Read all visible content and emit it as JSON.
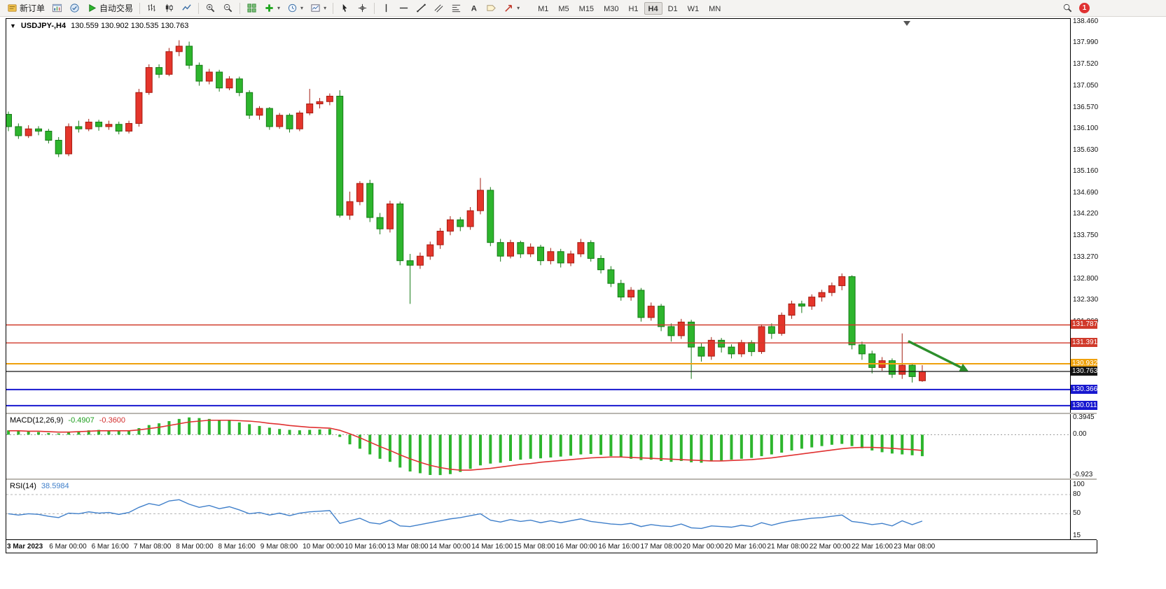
{
  "toolbar": {
    "new_order": "新订单",
    "autotrading": "自动交易",
    "timeframes": [
      "M1",
      "M5",
      "M15",
      "M30",
      "H1",
      "H4",
      "D1",
      "W1",
      "MN"
    ],
    "active_timeframe": "H4",
    "notification_count": "1"
  },
  "chart": {
    "symbol_title": "USDJPY-,H4",
    "ohlc_line": "130.559 130.902 130.535 130.763"
  },
  "chart_data": [
    {
      "type": "candlestick",
      "title": "USDJPY-,H4",
      "current_ohlc": {
        "open": 130.559,
        "high": 130.902,
        "low": 130.535,
        "close": 130.763
      },
      "up_color": "#e5352b",
      "up_border": "#a31d12",
      "down_color": "#2db52d",
      "down_border": "#167a16",
      "ylim": [
        129.84,
        138.52
      ],
      "y_ticks": [
        "138.460",
        "137.990",
        "137.520",
        "137.050",
        "136.570",
        "136.100",
        "135.630",
        "135.160",
        "134.690",
        "134.220",
        "133.750",
        "133.270",
        "132.800",
        "132.330",
        "131.860"
      ],
      "x_labels": [
        "3 Mar 2023",
        "6 Mar 00:00",
        "6 Mar 16:00",
        "7 Mar 08:00",
        "8 Mar 00:00",
        "8 Mar 16:00",
        "9 Mar 08:00",
        "10 Mar 00:00",
        "10 Mar 16:00",
        "13 Mar 08:00",
        "14 Mar 00:00",
        "14 Mar 16:00",
        "15 Mar 08:00",
        "16 Mar 00:00",
        "16 Mar 16:00",
        "17 Mar 08:00",
        "20 Mar 00:00",
        "20 Mar 16:00",
        "21 Mar 08:00",
        "22 Mar 00:00",
        "22 Mar 16:00",
        "23 Mar 08:00"
      ],
      "hlines": [
        {
          "price": 131.787,
          "color": "#d03a2b",
          "width": 1.4,
          "label": "131.787"
        },
        {
          "price": 131.391,
          "color": "#d03a2b",
          "width": 1.4,
          "label": "131.391"
        },
        {
          "price": 130.932,
          "color": "#efa10c",
          "width": 2,
          "label": "130.932"
        },
        {
          "price": 130.763,
          "color": "#141414",
          "width": 1.2,
          "label": "130.763"
        },
        {
          "price": 130.366,
          "color": "#1717cf",
          "width": 2,
          "label": "130.366"
        },
        {
          "price": 130.011,
          "color": "#1717cf",
          "width": 2,
          "label": "130.011"
        }
      ],
      "arrow_annotation": {
        "from_index": 89.6,
        "from_price": 131.43,
        "to_index": 95.6,
        "to_price": 130.77,
        "color": "#2c8f2c"
      },
      "candles": [
        [
          136.42,
          136.48,
          136.05,
          136.15
        ],
        [
          136.15,
          136.22,
          135.88,
          135.95
        ],
        [
          135.95,
          136.18,
          135.9,
          136.1
        ],
        [
          136.1,
          136.16,
          135.96,
          136.05
        ],
        [
          136.05,
          136.1,
          135.78,
          135.85
        ],
        [
          135.85,
          135.92,
          135.48,
          135.55
        ],
        [
          135.55,
          136.22,
          135.5,
          136.15
        ],
        [
          136.15,
          136.28,
          136.02,
          136.1
        ],
        [
          136.1,
          136.32,
          136.05,
          136.25
        ],
        [
          136.25,
          136.3,
          136.06,
          136.15
        ],
        [
          136.15,
          136.28,
          136.08,
          136.2
        ],
        [
          136.2,
          136.26,
          135.98,
          136.05
        ],
        [
          136.05,
          136.28,
          136.0,
          136.22
        ],
        [
          136.22,
          136.98,
          136.15,
          136.9
        ],
        [
          136.9,
          137.52,
          136.85,
          137.45
        ],
        [
          137.45,
          137.52,
          137.22,
          137.3
        ],
        [
          137.3,
          137.88,
          137.26,
          137.8
        ],
        [
          137.8,
          138.05,
          137.7,
          137.92
        ],
        [
          137.92,
          138.02,
          137.42,
          137.5
        ],
        [
          137.5,
          137.56,
          137.05,
          137.15
        ],
        [
          137.15,
          137.42,
          137.08,
          137.35
        ],
        [
          137.35,
          137.4,
          136.92,
          137.0
        ],
        [
          137.0,
          137.26,
          136.95,
          137.2
        ],
        [
          137.2,
          137.25,
          136.82,
          136.9
        ],
        [
          136.9,
          136.95,
          136.32,
          136.4
        ],
        [
          136.4,
          136.6,
          136.3,
          136.55
        ],
        [
          136.55,
          136.58,
          136.08,
          136.15
        ],
        [
          136.15,
          136.45,
          136.1,
          136.4
        ],
        [
          136.4,
          136.44,
          136.02,
          136.1
        ],
        [
          136.1,
          136.5,
          136.05,
          136.45
        ],
        [
          136.45,
          136.98,
          136.4,
          136.65
        ],
        [
          136.65,
          136.78,
          136.55,
          136.7
        ],
        [
          136.7,
          136.88,
          136.62,
          136.82
        ],
        [
          136.82,
          136.95,
          134.15,
          134.2
        ],
        [
          134.2,
          134.72,
          134.1,
          134.5
        ],
        [
          134.5,
          134.95,
          134.42,
          134.9
        ],
        [
          134.9,
          134.98,
          134.05,
          134.15
        ],
        [
          134.15,
          134.25,
          133.78,
          133.9
        ],
        [
          133.9,
          134.52,
          133.82,
          134.45
        ],
        [
          134.45,
          134.5,
          133.1,
          133.2
        ],
        [
          133.2,
          133.35,
          132.25,
          133.1
        ],
        [
          133.1,
          133.38,
          133.02,
          133.3
        ],
        [
          133.3,
          133.62,
          133.22,
          133.55
        ],
        [
          133.55,
          133.92,
          133.46,
          133.85
        ],
        [
          133.85,
          134.18,
          133.76,
          134.1
        ],
        [
          134.1,
          134.16,
          133.85,
          133.95
        ],
        [
          133.95,
          134.38,
          133.88,
          134.3
        ],
        [
          134.3,
          135.02,
          134.22,
          134.75
        ],
        [
          134.75,
          134.82,
          133.52,
          133.6
        ],
        [
          133.6,
          133.68,
          133.18,
          133.3
        ],
        [
          133.3,
          133.66,
          133.25,
          133.6
        ],
        [
          133.6,
          133.64,
          133.26,
          133.35
        ],
        [
          133.35,
          133.58,
          133.28,
          133.5
        ],
        [
          133.5,
          133.55,
          133.1,
          133.2
        ],
        [
          133.2,
          133.48,
          133.12,
          133.4
        ],
        [
          133.4,
          133.46,
          133.05,
          133.15
        ],
        [
          133.15,
          133.42,
          133.08,
          133.35
        ],
        [
          133.35,
          133.68,
          133.28,
          133.6
        ],
        [
          133.6,
          133.65,
          133.18,
          133.25
        ],
        [
          133.25,
          133.32,
          132.92,
          133.0
        ],
        [
          133.0,
          133.08,
          132.62,
          132.7
        ],
        [
          132.7,
          132.78,
          132.32,
          132.4
        ],
        [
          132.4,
          132.62,
          132.32,
          132.55
        ],
        [
          132.55,
          132.6,
          131.86,
          131.95
        ],
        [
          131.95,
          132.28,
          131.88,
          132.2
        ],
        [
          132.2,
          132.25,
          131.65,
          131.75
        ],
        [
          131.75,
          131.82,
          131.42,
          131.55
        ],
        [
          131.55,
          131.92,
          131.48,
          131.85
        ],
        [
          131.85,
          131.9,
          130.6,
          131.3
        ],
        [
          131.3,
          131.38,
          130.98,
          131.1
        ],
        [
          131.1,
          131.52,
          131.02,
          131.45
        ],
        [
          131.45,
          131.5,
          131.18,
          131.3
        ],
        [
          131.3,
          131.36,
          131.05,
          131.15
        ],
        [
          131.15,
          131.46,
          131.08,
          131.4
        ],
        [
          131.4,
          131.45,
          131.1,
          131.2
        ],
        [
          131.2,
          131.8,
          131.15,
          131.75
        ],
        [
          131.75,
          131.82,
          131.48,
          131.6
        ],
        [
          131.6,
          132.06,
          131.55,
          132.0
        ],
        [
          132.0,
          132.32,
          131.92,
          132.25
        ],
        [
          132.25,
          132.32,
          132.05,
          132.2
        ],
        [
          132.2,
          132.46,
          132.12,
          132.4
        ],
        [
          132.4,
          132.56,
          132.3,
          132.5
        ],
        [
          132.5,
          132.72,
          132.42,
          132.65
        ],
        [
          132.65,
          132.92,
          132.55,
          132.85
        ],
        [
          132.85,
          132.88,
          131.25,
          131.35
        ],
        [
          131.35,
          131.42,
          131.02,
          131.15
        ],
        [
          131.15,
          131.22,
          130.72,
          130.85
        ],
        [
          130.85,
          131.08,
          130.78,
          131.0
        ],
        [
          131.0,
          131.05,
          130.62,
          130.7
        ],
        [
          130.7,
          131.6,
          130.6,
          130.9
        ],
        [
          130.9,
          130.95,
          130.52,
          130.65
        ],
        [
          130.559,
          130.902,
          130.535,
          130.763
        ]
      ]
    },
    {
      "type": "macd_histogram",
      "label": "MACD(12,26,9)",
      "values_text": [
        "-0.4907",
        "-0.3600"
      ],
      "histogram_color": "#2db52d",
      "signal_color": "#e03131",
      "ylim": [
        -1.0,
        0.47
      ],
      "y_ticks": [
        "0.3945",
        "0.00",
        "-0.923"
      ],
      "y_tick_values": [
        0.3945,
        0,
        -0.923
      ],
      "histogram": [
        0.1,
        0.08,
        0.07,
        0.06,
        0.04,
        0.03,
        0.06,
        0.08,
        0.1,
        0.11,
        0.1,
        0.09,
        0.1,
        0.15,
        0.22,
        0.26,
        0.31,
        0.36,
        0.3945,
        0.38,
        0.36,
        0.34,
        0.32,
        0.28,
        0.24,
        0.2,
        0.16,
        0.13,
        0.11,
        0.1,
        0.11,
        0.12,
        0.13,
        -0.05,
        -0.22,
        -0.32,
        -0.45,
        -0.55,
        -0.62,
        -0.75,
        -0.84,
        -0.88,
        -0.92,
        -0.923,
        -0.9,
        -0.85,
        -0.78,
        -0.7,
        -0.66,
        -0.64,
        -0.6,
        -0.57,
        -0.55,
        -0.54,
        -0.52,
        -0.5,
        -0.48,
        -0.45,
        -0.44,
        -0.46,
        -0.49,
        -0.52,
        -0.55,
        -0.58,
        -0.57,
        -0.6,
        -0.62,
        -0.6,
        -0.63,
        -0.64,
        -0.61,
        -0.59,
        -0.57,
        -0.55,
        -0.53,
        -0.49,
        -0.45,
        -0.41,
        -0.36,
        -0.32,
        -0.29,
        -0.26,
        -0.23,
        -0.21,
        -0.26,
        -0.31,
        -0.36,
        -0.4,
        -0.43,
        -0.45,
        -0.47,
        -0.4907
      ],
      "signal": [
        0.09,
        0.09,
        0.08,
        0.08,
        0.07,
        0.06,
        0.06,
        0.07,
        0.08,
        0.09,
        0.09,
        0.09,
        0.09,
        0.11,
        0.14,
        0.17,
        0.21,
        0.25,
        0.29,
        0.31,
        0.33,
        0.33,
        0.33,
        0.32,
        0.31,
        0.29,
        0.26,
        0.24,
        0.21,
        0.19,
        0.17,
        0.16,
        0.15,
        0.1,
        0.02,
        -0.07,
        -0.17,
        -0.27,
        -0.36,
        -0.46,
        -0.55,
        -0.63,
        -0.7,
        -0.75,
        -0.79,
        -0.81,
        -0.81,
        -0.79,
        -0.77,
        -0.74,
        -0.71,
        -0.68,
        -0.66,
        -0.63,
        -0.61,
        -0.59,
        -0.57,
        -0.55,
        -0.53,
        -0.52,
        -0.51,
        -0.51,
        -0.52,
        -0.53,
        -0.54,
        -0.55,
        -0.56,
        -0.57,
        -0.58,
        -0.59,
        -0.6,
        -0.6,
        -0.59,
        -0.58,
        -0.57,
        -0.55,
        -0.53,
        -0.5,
        -0.47,
        -0.44,
        -0.41,
        -0.38,
        -0.35,
        -0.32,
        -0.3,
        -0.29,
        -0.29,
        -0.3,
        -0.31,
        -0.33,
        -0.34,
        -0.36
      ]
    },
    {
      "type": "rsi_line",
      "label": "RSI(14)",
      "value_text": "38.5984",
      "line_color": "#3f7fca",
      "ylim": [
        10,
        103
      ],
      "y_ticks": [
        "100",
        "80",
        "50",
        "15"
      ],
      "y_tick_values": [
        100,
        80,
        50,
        15
      ],
      "levels": [
        80,
        50
      ],
      "values": [
        50,
        48,
        50,
        49,
        46,
        44,
        51,
        50,
        53,
        51,
        52,
        49,
        52,
        60,
        66,
        63,
        70,
        72,
        65,
        60,
        63,
        58,
        61,
        56,
        50,
        52,
        48,
        51,
        47,
        51,
        53,
        54,
        55,
        35,
        39,
        43,
        36,
        34,
        40,
        31,
        30,
        33,
        36,
        39,
        42,
        44,
        47,
        50,
        40,
        37,
        41,
        38,
        40,
        36,
        39,
        36,
        39,
        42,
        38,
        36,
        34,
        33,
        35,
        30,
        33,
        31,
        30,
        34,
        28,
        27,
        31,
        30,
        29,
        32,
        30,
        36,
        32,
        36,
        39,
        41,
        43,
        44,
        46,
        48,
        38,
        36,
        33,
        35,
        31,
        39,
        33,
        38.6
      ]
    }
  ]
}
